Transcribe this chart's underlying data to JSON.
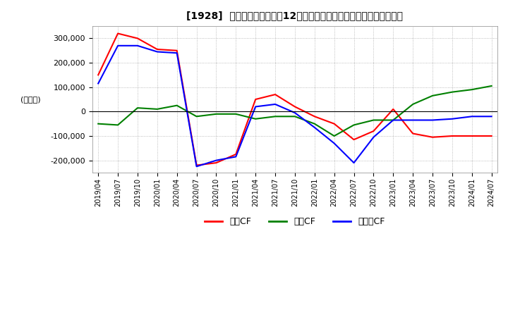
{
  "title": "[1928]  キャッシュフローの12か月移動合計の対前年同期増減額の推移",
  "ylabel": "(百万円)",
  "ylim": [
    -250000,
    350000
  ],
  "yticks": [
    -200000,
    -100000,
    0,
    100000,
    200000,
    300000
  ],
  "legend_labels": [
    "営業CF",
    "投資CF",
    "フリーCF"
  ],
  "line_colors": [
    "#ff0000",
    "#008000",
    "#0000ff"
  ],
  "background_color": "#ffffff",
  "plot_bg_color": "#ffffff",
  "grid_color": "#aaaaaa",
  "dates": [
    "2019/04",
    "2019/07",
    "2019/10",
    "2020/01",
    "2020/04",
    "2020/07",
    "2020/10",
    "2021/01",
    "2021/04",
    "2021/07",
    "2021/10",
    "2022/01",
    "2022/04",
    "2022/07",
    "2022/10",
    "2023/01",
    "2023/04",
    "2023/07",
    "2023/10",
    "2024/01",
    "2024/07"
  ],
  "operating_cf": [
    150000,
    320000,
    300000,
    255000,
    250000,
    -220000,
    -210000,
    -175000,
    50000,
    70000,
    20000,
    -20000,
    -50000,
    -115000,
    -80000,
    10000,
    -90000,
    -105000,
    -100000,
    -100000,
    -100000
  ],
  "investing_cf": [
    -50000,
    -55000,
    15000,
    10000,
    25000,
    -20000,
    -10000,
    -10000,
    -30000,
    -20000,
    -20000,
    -50000,
    -100000,
    -55000,
    -35000,
    -35000,
    30000,
    65000,
    80000,
    90000,
    105000
  ],
  "free_cf": [
    115000,
    270000,
    270000,
    245000,
    240000,
    -225000,
    -200000,
    -185000,
    20000,
    30000,
    -5000,
    -65000,
    -130000,
    -210000,
    -105000,
    -35000,
    -35000,
    -35000,
    -30000,
    -20000,
    -20000
  ]
}
